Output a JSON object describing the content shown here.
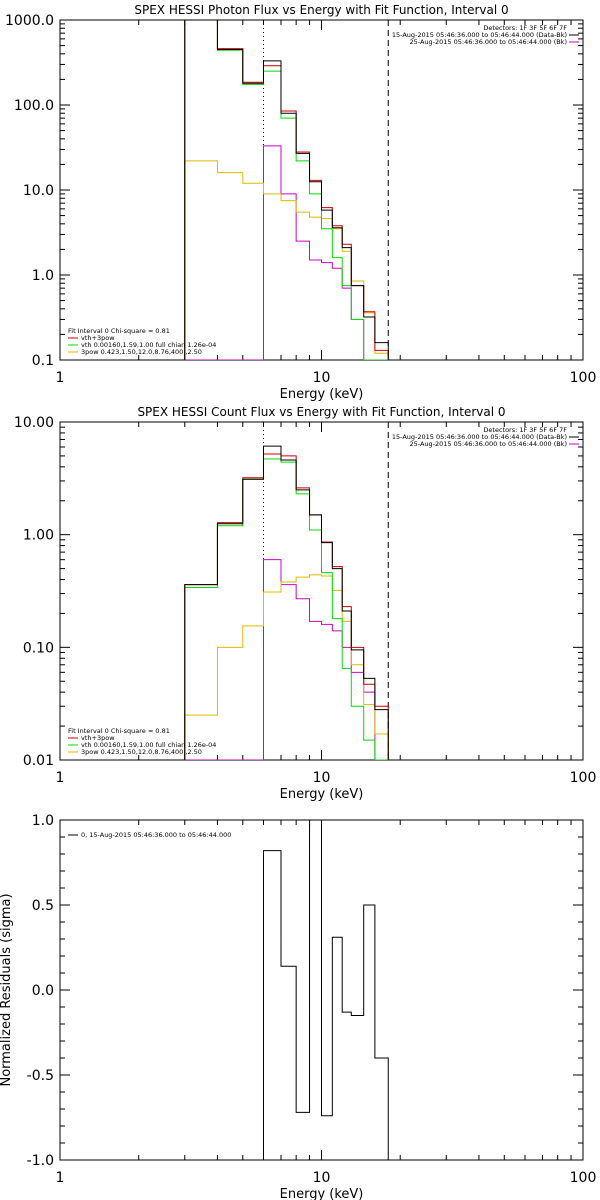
{
  "chart_data": [
    {
      "type": "line",
      "title": "SPEX HESSI Photon Flux vs Energy with Fit Function, Interval 0",
      "xlabel": "Energy (keV)",
      "ylabel": "",
      "xscale": "log",
      "yscale": "log",
      "xlim": [
        1,
        100
      ],
      "ylim": [
        0.1,
        1000
      ],
      "xticks": [
        1,
        10,
        100
      ],
      "xtick_labels": [
        "1",
        "10",
        "100"
      ],
      "yticks": [
        0.1,
        1,
        10,
        100,
        1000
      ],
      "ytick_labels": [
        "0.1",
        "1.0",
        "10.0",
        "100.0",
        "1000.0"
      ],
      "vlines": [
        {
          "x": 6.0,
          "style": "dotted",
          "color": "#000000"
        },
        {
          "x": 18.0,
          "style": "dashed",
          "color": "#000000"
        }
      ],
      "legend": {
        "placement": "bottom-left",
        "header": "Fit Interval 0   Chi-square = 0.81",
        "entries": [
          {
            "label": "vth+3pow",
            "color": "#cc0000"
          },
          {
            "label": "vth 0.00160,1.59,1.00  full chian 1.26e-04",
            "color": "#00dd00"
          },
          {
            "label": "3pow 0.423,1.50,12.0,8.76,400.,2.50",
            "color": "#ddbb00"
          }
        ]
      },
      "info": {
        "placement": "top-right",
        "lines": [
          {
            "text": "Detectors: 1F 3F 5F 6F 7F",
            "color": "#000000"
          },
          {
            "text": "15-Aug-2015 05:46:36.000 to 05:46:44.000 (Data-Bk)",
            "color": "#000000"
          },
          {
            "text": "25-Aug-2015 05:46:36.000 to 05:46:44.000 (Bk)",
            "color": "#cc00cc"
          }
        ]
      },
      "bin_edges": [
        3.0,
        4.0,
        5.0,
        6.0,
        7.0,
        8.0,
        9.0,
        10.0,
        11.0,
        12.0,
        13.0,
        14.5,
        16.0,
        18.0
      ],
      "series": [
        {
          "name": "Data-Bk",
          "color": "#000000",
          "values": [
            1000,
            450,
            180,
            330,
            80,
            27,
            12.5,
            5.8,
            3.6,
            2.1,
            0.75,
            0.32,
            0.16
          ]
        },
        {
          "name": "vth+3pow",
          "color": "#cc0000",
          "values": [
            1000,
            460,
            185,
            290,
            85,
            28,
            13,
            6.2,
            3.8,
            2.3,
            0.75,
            0.37,
            0.13
          ]
        },
        {
          "name": "vth",
          "color": "#00dd00",
          "values": [
            1000,
            440,
            175,
            250,
            70,
            22,
            9,
            3.5,
            1.6,
            0.75,
            0.3,
            0.1,
            0.1
          ]
        },
        {
          "name": "3pow",
          "color": "#ddbb00",
          "values": [
            22,
            16,
            12,
            9,
            7.5,
            5.5,
            4.8,
            4.6,
            3.5,
            1.9,
            0.85,
            0.36,
            0.12
          ]
        },
        {
          "name": "Bk",
          "color": "#cc00cc",
          "values": [
            0.1,
            0.1,
            0.1,
            33,
            9,
            2.5,
            1.5,
            1.4,
            1.2,
            0.7,
            0.3,
            0.1,
            0.1
          ]
        }
      ]
    },
    {
      "type": "line",
      "title": "SPEX HESSI Count Flux vs Energy with Fit Function, Interval 0",
      "xlabel": "Energy (keV)",
      "ylabel": "",
      "xscale": "log",
      "yscale": "log",
      "xlim": [
        1,
        100
      ],
      "ylim": [
        0.01,
        10
      ],
      "xticks": [
        1,
        10,
        100
      ],
      "xtick_labels": [
        "1",
        "10",
        "100"
      ],
      "yticks": [
        0.01,
        0.1,
        1,
        10
      ],
      "ytick_labels": [
        "0.01",
        "0.10",
        "1.00",
        "10.00"
      ],
      "vlines": [
        {
          "x": 6.0,
          "style": "dotted",
          "color": "#000000"
        },
        {
          "x": 18.0,
          "style": "dashed",
          "color": "#000000"
        }
      ],
      "legend": {
        "placement": "bottom-left",
        "header": "Fit Interval 0   Chi-square = 0.81",
        "entries": [
          {
            "label": "vth+3pow",
            "color": "#cc0000"
          },
          {
            "label": "vth 0.00160,1.59,1.00  full chian 1.26e-04",
            "color": "#00dd00"
          },
          {
            "label": "3pow 0.423,1.50,12.0,8.76,400.,2.50",
            "color": "#ddbb00"
          }
        ]
      },
      "info": {
        "placement": "top-right",
        "lines": [
          {
            "text": "Detectors: 1F 3F 5F 6F 7F",
            "color": "#000000"
          },
          {
            "text": "15-Aug-2015 05:46:36.000 to 05:46:44.000 (Data-Bk)",
            "color": "#000000"
          },
          {
            "text": "25-Aug-2015 05:46:36.000 to 05:46:44.000 (Bk)",
            "color": "#cc00cc"
          }
        ]
      },
      "bin_edges": [
        3.0,
        4.0,
        5.0,
        6.0,
        7.0,
        8.0,
        9.0,
        10.0,
        11.0,
        12.0,
        13.0,
        14.5,
        16.0,
        18.0
      ],
      "series": [
        {
          "name": "Data-Bk",
          "color": "#000000",
          "values": [
            0.36,
            1.25,
            3.1,
            6.1,
            4.6,
            2.5,
            1.5,
            0.85,
            0.5,
            0.21,
            0.095,
            0.053,
            0.028
          ]
        },
        {
          "name": "vth+3pow",
          "color": "#cc0000",
          "values": [
            0.36,
            1.28,
            3.2,
            5.2,
            5.0,
            2.6,
            1.5,
            0.86,
            0.52,
            0.23,
            0.1,
            0.047,
            0.03
          ]
        },
        {
          "name": "vth",
          "color": "#00dd00",
          "values": [
            0.34,
            1.2,
            3.1,
            4.7,
            4.4,
            2.3,
            1.1,
            0.46,
            0.18,
            0.065,
            0.03,
            0.015,
            0.01
          ]
        },
        {
          "name": "3pow",
          "color": "#ddbb00",
          "values": [
            0.025,
            0.1,
            0.155,
            0.31,
            0.38,
            0.42,
            0.44,
            0.43,
            0.32,
            0.17,
            0.07,
            0.031,
            0.017
          ]
        },
        {
          "name": "Bk",
          "color": "#cc00cc",
          "values": [
            0.01,
            0.01,
            0.01,
            0.6,
            0.36,
            0.27,
            0.17,
            0.16,
            0.14,
            0.1,
            0.06,
            0.04,
            0.01
          ]
        }
      ]
    },
    {
      "type": "line",
      "title": "",
      "xlabel": "Energy (keV)",
      "ylabel": "Normalized Residuals (sigma)",
      "xscale": "log",
      "yscale": "linear",
      "xlim": [
        1,
        100
      ],
      "ylim": [
        -1.0,
        1.0
      ],
      "xticks": [
        1,
        10,
        100
      ],
      "xtick_labels": [
        "1",
        "10",
        "100"
      ],
      "yticks": [
        -1.0,
        -0.5,
        0.0,
        0.5,
        1.0
      ],
      "ytick_labels": [
        "-1.0",
        "-0.5",
        "0.0",
        "0.5",
        "1.0"
      ],
      "legend": {
        "placement": "top-left",
        "entries": [
          {
            "label": "0, 15-Aug-2015 05:46:36.000 to 05:46:44.000",
            "color": "#000000"
          }
        ]
      },
      "bin_edges": [
        6.0,
        7.0,
        8.0,
        9.0,
        10.0,
        11.0,
        12.0,
        13.0,
        14.5,
        16.0,
        18.0
      ],
      "series": [
        {
          "name": "",
          "color": "#000000",
          "values": [
            0.82,
            0.14,
            -0.72,
            1.0,
            -0.74,
            0.31,
            -0.13,
            -0.15,
            0.5,
            -0.4
          ]
        }
      ]
    }
  ]
}
